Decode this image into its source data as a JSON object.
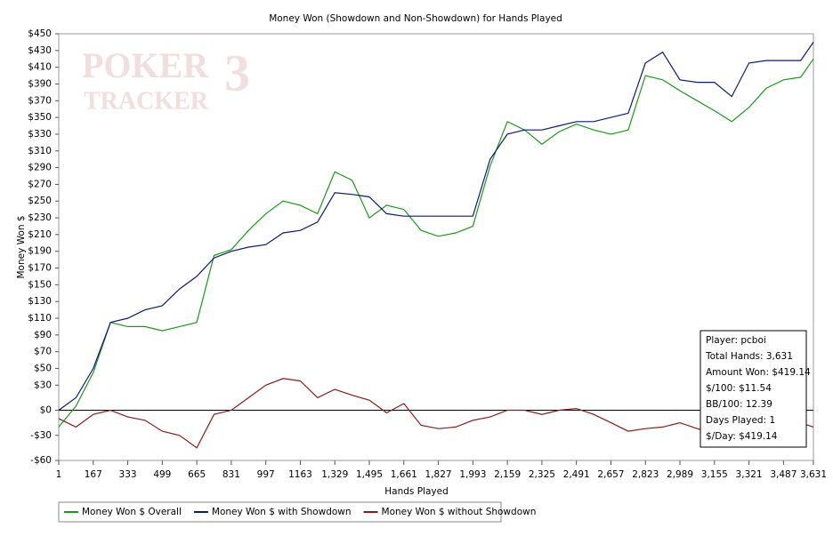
{
  "chart_data": {
    "type": "line",
    "title": "Money Won (Showdown and Non-Showdown) for Hands Played",
    "watermark": [
      "POKER",
      "3",
      "TRACKER"
    ],
    "x_label": "Hands Played",
    "y_label": "Money Won $",
    "x": [
      1,
      84,
      167,
      250,
      333,
      416,
      499,
      582,
      665,
      748,
      831,
      914,
      997,
      1080,
      1163,
      1246,
      1329,
      1412,
      1495,
      1578,
      1661,
      1744,
      1827,
      1910,
      1993,
      2076,
      2159,
      2242,
      2325,
      2408,
      2491,
      2574,
      2657,
      2740,
      2823,
      2906,
      2989,
      3072,
      3155,
      3238,
      3321,
      3404,
      3487,
      3570,
      3631
    ],
    "series": [
      {
        "name": "Money Won $ Overall",
        "color": "#1a9a1a",
        "values": [
          -20,
          5,
          45,
          105,
          100,
          100,
          95,
          100,
          105,
          185,
          192,
          215,
          235,
          250,
          245,
          235,
          285,
          275,
          230,
          245,
          240,
          215,
          208,
          212,
          220,
          292,
          345,
          335,
          318,
          333,
          342,
          335,
          330,
          335,
          400,
          395,
          382,
          370,
          358,
          345,
          362,
          385,
          395,
          398,
          420
        ]
      },
      {
        "name": "Money Won $ with Showdown",
        "color": "#0c1a78",
        "values": [
          0,
          15,
          50,
          105,
          110,
          120,
          125,
          145,
          160,
          182,
          190,
          195,
          198,
          212,
          215,
          225,
          260,
          258,
          255,
          235,
          232,
          232,
          232,
          232,
          232,
          300,
          330,
          335,
          335,
          340,
          345,
          345,
          350,
          355,
          415,
          428,
          395,
          392,
          392,
          375,
          415,
          418,
          418,
          418,
          440
        ]
      },
      {
        "name": "Money Won $ without Showdown",
        "color": "#8b1a1a",
        "values": [
          -10,
          -20,
          -5,
          0,
          -8,
          -12,
          -25,
          -30,
          -45,
          -5,
          0,
          15,
          30,
          38,
          35,
          15,
          25,
          18,
          12,
          -3,
          8,
          -18,
          -22,
          -20,
          -12,
          -8,
          0,
          0,
          -5,
          0,
          2,
          -5,
          -15,
          -25,
          -22,
          -20,
          -15,
          -22,
          -28,
          -25,
          -25,
          -20,
          -18,
          -15,
          -20
        ]
      }
    ],
    "xlim": [
      1,
      3631
    ],
    "xticks": [
      1,
      167,
      333,
      499,
      665,
      831,
      997,
      1163,
      {
        "value": 1329,
        "label": "1,329"
      },
      {
        "value": 1495,
        "label": "1,495"
      },
      {
        "value": 1661,
        "label": "1,661"
      },
      {
        "value": 1827,
        "label": "1,827"
      },
      {
        "value": 1993,
        "label": "1,993"
      },
      {
        "value": 2159,
        "label": "2,159"
      },
      {
        "value": 2325,
        "label": "2,325"
      },
      {
        "value": 2491,
        "label": "2,491"
      },
      {
        "value": 2657,
        "label": "2,657"
      },
      {
        "value": 2823,
        "label": "2,823"
      },
      {
        "value": 2989,
        "label": "2,989"
      },
      {
        "value": 3155,
        "label": "3,155"
      },
      {
        "value": 3321,
        "label": "3,321"
      },
      {
        "value": 3487,
        "label": "3,487"
      },
      {
        "value": 3631,
        "label": "3,631"
      }
    ],
    "ylim": [
      -60,
      450
    ],
    "yticks": [
      {
        "value": 450,
        "label": "$450"
      },
      {
        "value": 430,
        "label": "$430"
      },
      {
        "value": 410,
        "label": "$410"
      },
      {
        "value": 390,
        "label": "$390"
      },
      {
        "value": 370,
        "label": "$370"
      },
      {
        "value": 350,
        "label": "$350"
      },
      {
        "value": 330,
        "label": "$330"
      },
      {
        "value": 310,
        "label": "$310"
      },
      {
        "value": 290,
        "label": "$290"
      },
      {
        "value": 270,
        "label": "$270"
      },
      {
        "value": 250,
        "label": "$250"
      },
      {
        "value": 230,
        "label": "$230"
      },
      {
        "value": 210,
        "label": "$210"
      },
      {
        "value": 190,
        "label": "$190"
      },
      {
        "value": 170,
        "label": "$170"
      },
      {
        "value": 150,
        "label": "$150"
      },
      {
        "value": 130,
        "label": "$130"
      },
      {
        "value": 110,
        "label": "$110"
      },
      {
        "value": 90,
        "label": "$90"
      },
      {
        "value": 70,
        "label": "$70"
      },
      {
        "value": 50,
        "label": "$50"
      },
      {
        "value": 30,
        "label": "$30"
      },
      {
        "value": 0,
        "label": "$0"
      },
      {
        "value": -30,
        "label": "-$30"
      },
      {
        "value": -60,
        "label": "-$60"
      }
    ],
    "grid": false,
    "legend": "bottom-left",
    "info_box": [
      "Player: pcboi",
      "Total Hands: 3,631",
      "Amount Won: $419.14",
      "$/100: $11.54",
      "BB/100: 12.39",
      "Days Played: 1",
      "$/Day: $419.14"
    ]
  }
}
